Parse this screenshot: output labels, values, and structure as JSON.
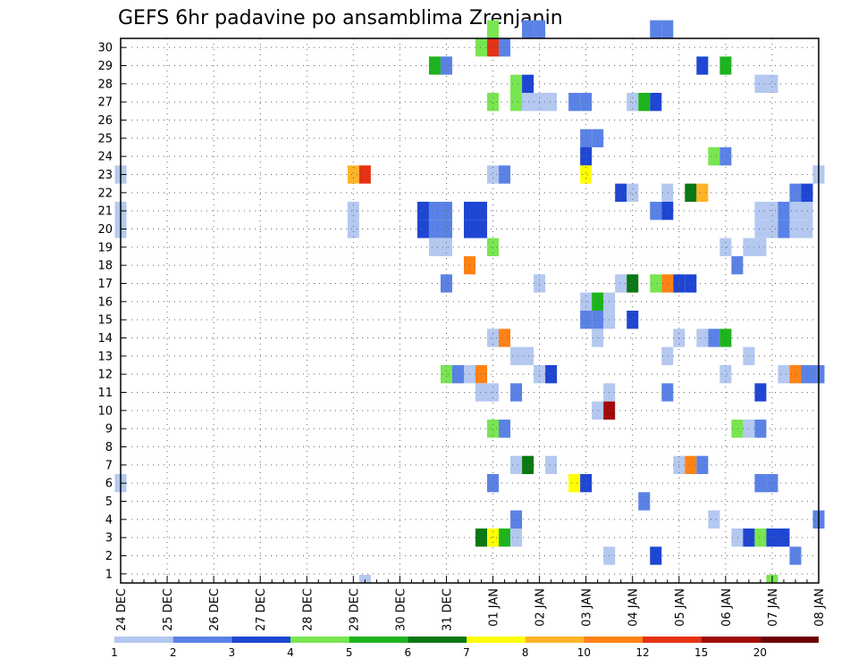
{
  "chart_data": {
    "type": "heatmap",
    "title": "GEFS 6hr padavine po ansamblima Zrenjanin",
    "y_categories": [
      "1",
      "2",
      "3",
      "4",
      "5",
      "6",
      "7",
      "8",
      "9",
      "10",
      "11",
      "12",
      "13",
      "14",
      "15",
      "16",
      "17",
      "18",
      "19",
      "20",
      "21",
      "22",
      "23",
      "24",
      "25",
      "26",
      "27",
      "28",
      "29",
      "30"
    ],
    "x_ticks": [
      "24 DEC",
      "25 DEC",
      "26 DEC",
      "27 DEC",
      "28 DEC",
      "29 DEC",
      "30 DEC",
      "31 DEC",
      "01 JAN",
      "02 JAN",
      "03 JAN",
      "04 JAN",
      "05 JAN",
      "06 JAN",
      "07 JAN",
      "08 JAN"
    ],
    "x_unit": "6-hour step (4 steps per day, step 0 = 24 DEC 00Z)",
    "grid": true,
    "colorbar": {
      "labels": [
        "1",
        "2",
        "3",
        "4",
        "5",
        "6",
        "7",
        "8",
        "10",
        "12",
        "15",
        "20"
      ],
      "colors": [
        "#b4c8f0",
        "#5a82e6",
        "#1e46d2",
        "#78e650",
        "#1eb41e",
        "#0a7814",
        "#ffff00",
        "#ffb428",
        "#ff8214",
        "#e63214",
        "#a00a0a",
        "#6e0000"
      ]
    },
    "cells": [
      {
        "m": 30,
        "t": 32,
        "c": 4
      },
      {
        "m": 30,
        "t": 35,
        "c": 2
      },
      {
        "m": 30,
        "t": 36,
        "c": 2
      },
      {
        "m": 30,
        "t": 46,
        "c": 2
      },
      {
        "m": 30,
        "t": 47,
        "c": 2
      },
      {
        "m": 29,
        "t": 31,
        "c": 4
      },
      {
        "m": 29,
        "t": 32,
        "c": 10
      },
      {
        "m": 29,
        "t": 33,
        "c": 2
      },
      {
        "m": 28,
        "t": 27,
        "c": 5
      },
      {
        "m": 28,
        "t": 28,
        "c": 2
      },
      {
        "m": 28,
        "t": 50,
        "c": 3
      },
      {
        "m": 28,
        "t": 52,
        "c": 5
      },
      {
        "m": 27,
        "t": 34,
        "c": 4
      },
      {
        "m": 27,
        "t": 35,
        "c": 3
      },
      {
        "m": 27,
        "t": 55,
        "c": 1
      },
      {
        "m": 27,
        "t": 56,
        "c": 1
      },
      {
        "m": 26,
        "t": 32,
        "c": 4
      },
      {
        "m": 26,
        "t": 34,
        "c": 4
      },
      {
        "m": 26,
        "t": 35,
        "c": 1
      },
      {
        "m": 26,
        "t": 36,
        "c": 1
      },
      {
        "m": 26,
        "t": 37,
        "c": 1
      },
      {
        "m": 26,
        "t": 39,
        "c": 2
      },
      {
        "m": 26,
        "t": 40,
        "c": 2
      },
      {
        "m": 26,
        "t": 44,
        "c": 1
      },
      {
        "m": 26,
        "t": 45,
        "c": 5
      },
      {
        "m": 26,
        "t": 46,
        "c": 3
      },
      {
        "m": 24,
        "t": 40,
        "c": 2
      },
      {
        "m": 24,
        "t": 41,
        "c": 2
      },
      {
        "m": 23,
        "t": 40,
        "c": 3
      },
      {
        "m": 23,
        "t": 51,
        "c": 4
      },
      {
        "m": 23,
        "t": 52,
        "c": 2
      },
      {
        "m": 22,
        "t": 0,
        "c": 1
      },
      {
        "m": 22,
        "t": 20,
        "c": 8
      },
      {
        "m": 22,
        "t": 21,
        "c": 10
      },
      {
        "m": 22,
        "t": 32,
        "c": 1
      },
      {
        "m": 22,
        "t": 33,
        "c": 2
      },
      {
        "m": 22,
        "t": 40,
        "c": 7
      },
      {
        "m": 22,
        "t": 60,
        "c": 1
      },
      {
        "m": 21,
        "t": 43,
        "c": 3
      },
      {
        "m": 21,
        "t": 44,
        "c": 1
      },
      {
        "m": 21,
        "t": 47,
        "c": 1
      },
      {
        "m": 21,
        "t": 49,
        "c": 6
      },
      {
        "m": 21,
        "t": 50,
        "c": 8
      },
      {
        "m": 21,
        "t": 58,
        "c": 2
      },
      {
        "m": 21,
        "t": 59,
        "c": 3
      },
      {
        "m": 20,
        "t": 0,
        "c": 1
      },
      {
        "m": 20,
        "t": 20,
        "c": 1
      },
      {
        "m": 20,
        "t": 26,
        "c": 3
      },
      {
        "m": 20,
        "t": 27,
        "c": 2
      },
      {
        "m": 20,
        "t": 28,
        "c": 2
      },
      {
        "m": 20,
        "t": 30,
        "c": 3
      },
      {
        "m": 20,
        "t": 31,
        "c": 3
      },
      {
        "m": 20,
        "t": 46,
        "c": 2
      },
      {
        "m": 20,
        "t": 47,
        "c": 3
      },
      {
        "m": 20,
        "t": 55,
        "c": 1
      },
      {
        "m": 20,
        "t": 56,
        "c": 1
      },
      {
        "m": 20,
        "t": 57,
        "c": 2
      },
      {
        "m": 20,
        "t": 58,
        "c": 1
      },
      {
        "m": 20,
        "t": 59,
        "c": 1
      },
      {
        "m": 19,
        "t": 0,
        "c": 1
      },
      {
        "m": 19,
        "t": 20,
        "c": 1
      },
      {
        "m": 19,
        "t": 26,
        "c": 3
      },
      {
        "m": 19,
        "t": 27,
        "c": 2
      },
      {
        "m": 19,
        "t": 28,
        "c": 2
      },
      {
        "m": 19,
        "t": 30,
        "c": 3
      },
      {
        "m": 19,
        "t": 31,
        "c": 3
      },
      {
        "m": 19,
        "t": 55,
        "c": 1
      },
      {
        "m": 19,
        "t": 56,
        "c": 1
      },
      {
        "m": 19,
        "t": 57,
        "c": 2
      },
      {
        "m": 19,
        "t": 58,
        "c": 1
      },
      {
        "m": 19,
        "t": 59,
        "c": 1
      },
      {
        "m": 18,
        "t": 27,
        "c": 1
      },
      {
        "m": 18,
        "t": 28,
        "c": 1
      },
      {
        "m": 18,
        "t": 32,
        "c": 4
      },
      {
        "m": 18,
        "t": 52,
        "c": 1
      },
      {
        "m": 18,
        "t": 54,
        "c": 1
      },
      {
        "m": 18,
        "t": 55,
        "c": 1
      },
      {
        "m": 17,
        "t": 30,
        "c": 9
      },
      {
        "m": 17,
        "t": 53,
        "c": 2
      },
      {
        "m": 16,
        "t": 28,
        "c": 2
      },
      {
        "m": 16,
        "t": 36,
        "c": 1
      },
      {
        "m": 16,
        "t": 43,
        "c": 1
      },
      {
        "m": 16,
        "t": 44,
        "c": 6
      },
      {
        "m": 16,
        "t": 46,
        "c": 4
      },
      {
        "m": 16,
        "t": 47,
        "c": 9
      },
      {
        "m": 16,
        "t": 48,
        "c": 3
      },
      {
        "m": 16,
        "t": 49,
        "c": 3
      },
      {
        "m": 15,
        "t": 40,
        "c": 1
      },
      {
        "m": 15,
        "t": 41,
        "c": 5
      },
      {
        "m": 15,
        "t": 42,
        "c": 1
      },
      {
        "m": 14,
        "t": 40,
        "c": 2
      },
      {
        "m": 14,
        "t": 41,
        "c": 2
      },
      {
        "m": 14,
        "t": 42,
        "c": 1
      },
      {
        "m": 14,
        "t": 44,
        "c": 3
      },
      {
        "m": 13,
        "t": 32,
        "c": 1
      },
      {
        "m": 13,
        "t": 33,
        "c": 9
      },
      {
        "m": 13,
        "t": 41,
        "c": 1
      },
      {
        "m": 13,
        "t": 48,
        "c": 1
      },
      {
        "m": 13,
        "t": 50,
        "c": 1
      },
      {
        "m": 13,
        "t": 51,
        "c": 2
      },
      {
        "m": 13,
        "t": 52,
        "c": 5
      },
      {
        "m": 12,
        "t": 34,
        "c": 1
      },
      {
        "m": 12,
        "t": 35,
        "c": 1
      },
      {
        "m": 12,
        "t": 47,
        "c": 1
      },
      {
        "m": 12,
        "t": 54,
        "c": 1
      },
      {
        "m": 11,
        "t": 28,
        "c": 4
      },
      {
        "m": 11,
        "t": 29,
        "c": 2
      },
      {
        "m": 11,
        "t": 30,
        "c": 1
      },
      {
        "m": 11,
        "t": 31,
        "c": 9
      },
      {
        "m": 11,
        "t": 36,
        "c": 1
      },
      {
        "m": 11,
        "t": 37,
        "c": 3
      },
      {
        "m": 11,
        "t": 52,
        "c": 1
      },
      {
        "m": 11,
        "t": 57,
        "c": 1
      },
      {
        "m": 11,
        "t": 58,
        "c": 9
      },
      {
        "m": 11,
        "t": 59,
        "c": 2
      },
      {
        "m": 11,
        "t": 60,
        "c": 2
      },
      {
        "m": 10,
        "t": 31,
        "c": 1
      },
      {
        "m": 10,
        "t": 32,
        "c": 1
      },
      {
        "m": 10,
        "t": 34,
        "c": 2
      },
      {
        "m": 10,
        "t": 42,
        "c": 1
      },
      {
        "m": 10,
        "t": 47,
        "c": 2
      },
      {
        "m": 10,
        "t": 55,
        "c": 3
      },
      {
        "m": 9,
        "t": 41,
        "c": 1
      },
      {
        "m": 9,
        "t": 42,
        "c": 11
      },
      {
        "m": 8,
        "t": 32,
        "c": 4
      },
      {
        "m": 8,
        "t": 33,
        "c": 2
      },
      {
        "m": 8,
        "t": 53,
        "c": 4
      },
      {
        "m": 8,
        "t": 54,
        "c": 1
      },
      {
        "m": 8,
        "t": 55,
        "c": 2
      },
      {
        "m": 6,
        "t": 34,
        "c": 1
      },
      {
        "m": 6,
        "t": 35,
        "c": 6
      },
      {
        "m": 6,
        "t": 37,
        "c": 1
      },
      {
        "m": 6,
        "t": 48,
        "c": 1
      },
      {
        "m": 6,
        "t": 49,
        "c": 9
      },
      {
        "m": 6,
        "t": 50,
        "c": 2
      },
      {
        "m": 5,
        "t": 0,
        "c": 1
      },
      {
        "m": 5,
        "t": 32,
        "c": 2
      },
      {
        "m": 5,
        "t": 39,
        "c": 7
      },
      {
        "m": 5,
        "t": 40,
        "c": 3
      },
      {
        "m": 5,
        "t": 55,
        "c": 2
      },
      {
        "m": 5,
        "t": 56,
        "c": 2
      },
      {
        "m": 4,
        "t": 45,
        "c": 2
      },
      {
        "m": 3,
        "t": 34,
        "c": 2
      },
      {
        "m": 3,
        "t": 51,
        "c": 1
      },
      {
        "m": 3,
        "t": 60,
        "c": 2
      },
      {
        "m": 2,
        "t": 31,
        "c": 6
      },
      {
        "m": 2,
        "t": 32,
        "c": 7
      },
      {
        "m": 2,
        "t": 33,
        "c": 5
      },
      {
        "m": 2,
        "t": 34,
        "c": 1
      },
      {
        "m": 2,
        "t": 53,
        "c": 1
      },
      {
        "m": 2,
        "t": 54,
        "c": 3
      },
      {
        "m": 2,
        "t": 55,
        "c": 4
      },
      {
        "m": 2,
        "t": 56,
        "c": 3
      },
      {
        "m": 2,
        "t": 57,
        "c": 3
      },
      {
        "m": 1,
        "t": 42,
        "c": 1
      },
      {
        "m": 1,
        "t": 46,
        "c": 3
      },
      {
        "m": 1,
        "t": 58,
        "c": 2
      },
      {
        "m": 0,
        "t": 21,
        "c": 1
      },
      {
        "m": 0,
        "t": 56,
        "c": 4
      }
    ]
  }
}
